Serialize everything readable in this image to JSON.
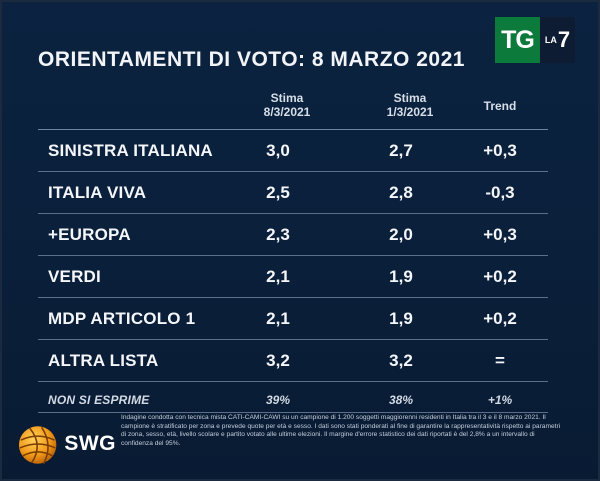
{
  "title": "ORIENTAMENTI DI VOTO: 8 MARZO 2021",
  "logo": {
    "tg": "TG",
    "la": "LA",
    "seven": "7"
  },
  "columns": {
    "col1_line1": "Stima",
    "col1_line2": "8/3/2021",
    "col2_line1": "Stima",
    "col2_line2": "1/3/2021",
    "col3": "Trend"
  },
  "rows": [
    {
      "party": "SINISTRA ITALIANA",
      "v1": "3,0",
      "v2": "2,7",
      "trend": "+0,3"
    },
    {
      "party": "ITALIA VIVA",
      "v1": "2,5",
      "v2": "2,8",
      "trend": "-0,3"
    },
    {
      "party": "+EUROPA",
      "v1": "2,3",
      "v2": "2,0",
      "trend": "+0,3"
    },
    {
      "party": "VERDI",
      "v1": "2,1",
      "v2": "1,9",
      "trend": "+0,2"
    },
    {
      "party": "MDP ARTICOLO 1",
      "v1": "2,1",
      "v2": "1,9",
      "trend": "+0,2"
    },
    {
      "party": "ALTRA LISTA",
      "v1": "3,2",
      "v2": "3,2",
      "trend": "="
    }
  ],
  "non_esprime": {
    "label": "NON SI ESPRIME",
    "v1": "39%",
    "v2": "38%",
    "trend": "+1%"
  },
  "brand": "SWG",
  "note": "Indagine condotta con tecnica mista CATI-CAMI-CAWI su un campione di 1.200 soggetti maggiorenni residenti in Italia tra il 3 e il 8 marzo 2021. Il campione è stratificato per zona e prevede quote per età e sesso. I dati sono stati ponderati al fine di garantire la rappresentatività rispetto ai parametri di zona, sesso, età, livello scolare e partito votato alle ultime elezioni. Il margine d'errore statistico dei dati riportati è del 2,8% a un intervallo di confidenza del 95%.",
  "colors": {
    "background": "#0a1f3a",
    "logo_green": "#0c7a3a",
    "text": "#ffffff"
  }
}
